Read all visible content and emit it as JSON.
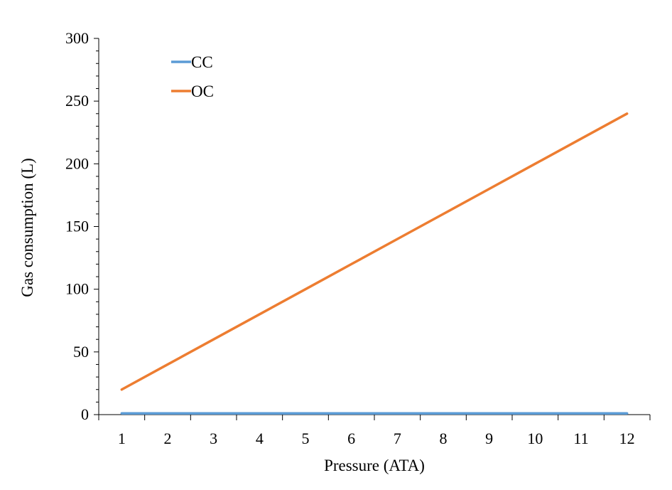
{
  "chart_data": {
    "type": "line",
    "title": "",
    "xlabel": "Pressure (ATA)",
    "ylabel": "Gas consumption (L)",
    "categories": [
      "1",
      "2",
      "3",
      "4",
      "5",
      "6",
      "7",
      "8",
      "9",
      "10",
      "11",
      "12"
    ],
    "ylim": [
      0,
      300
    ],
    "yticks": [
      "0",
      "50",
      "100",
      "150",
      "200",
      "250",
      "300"
    ],
    "grid": false,
    "legend": "top-left",
    "series": [
      {
        "name": "CC",
        "color": "#5b9bd5",
        "values": [
          1,
          1,
          1,
          1,
          1,
          1,
          1,
          1,
          1,
          1,
          1,
          1
        ]
      },
      {
        "name": "OC",
        "color": "#ed7d31",
        "values": [
          20,
          40,
          60,
          80,
          100,
          120,
          140,
          160,
          180,
          200,
          220,
          240
        ]
      }
    ]
  }
}
